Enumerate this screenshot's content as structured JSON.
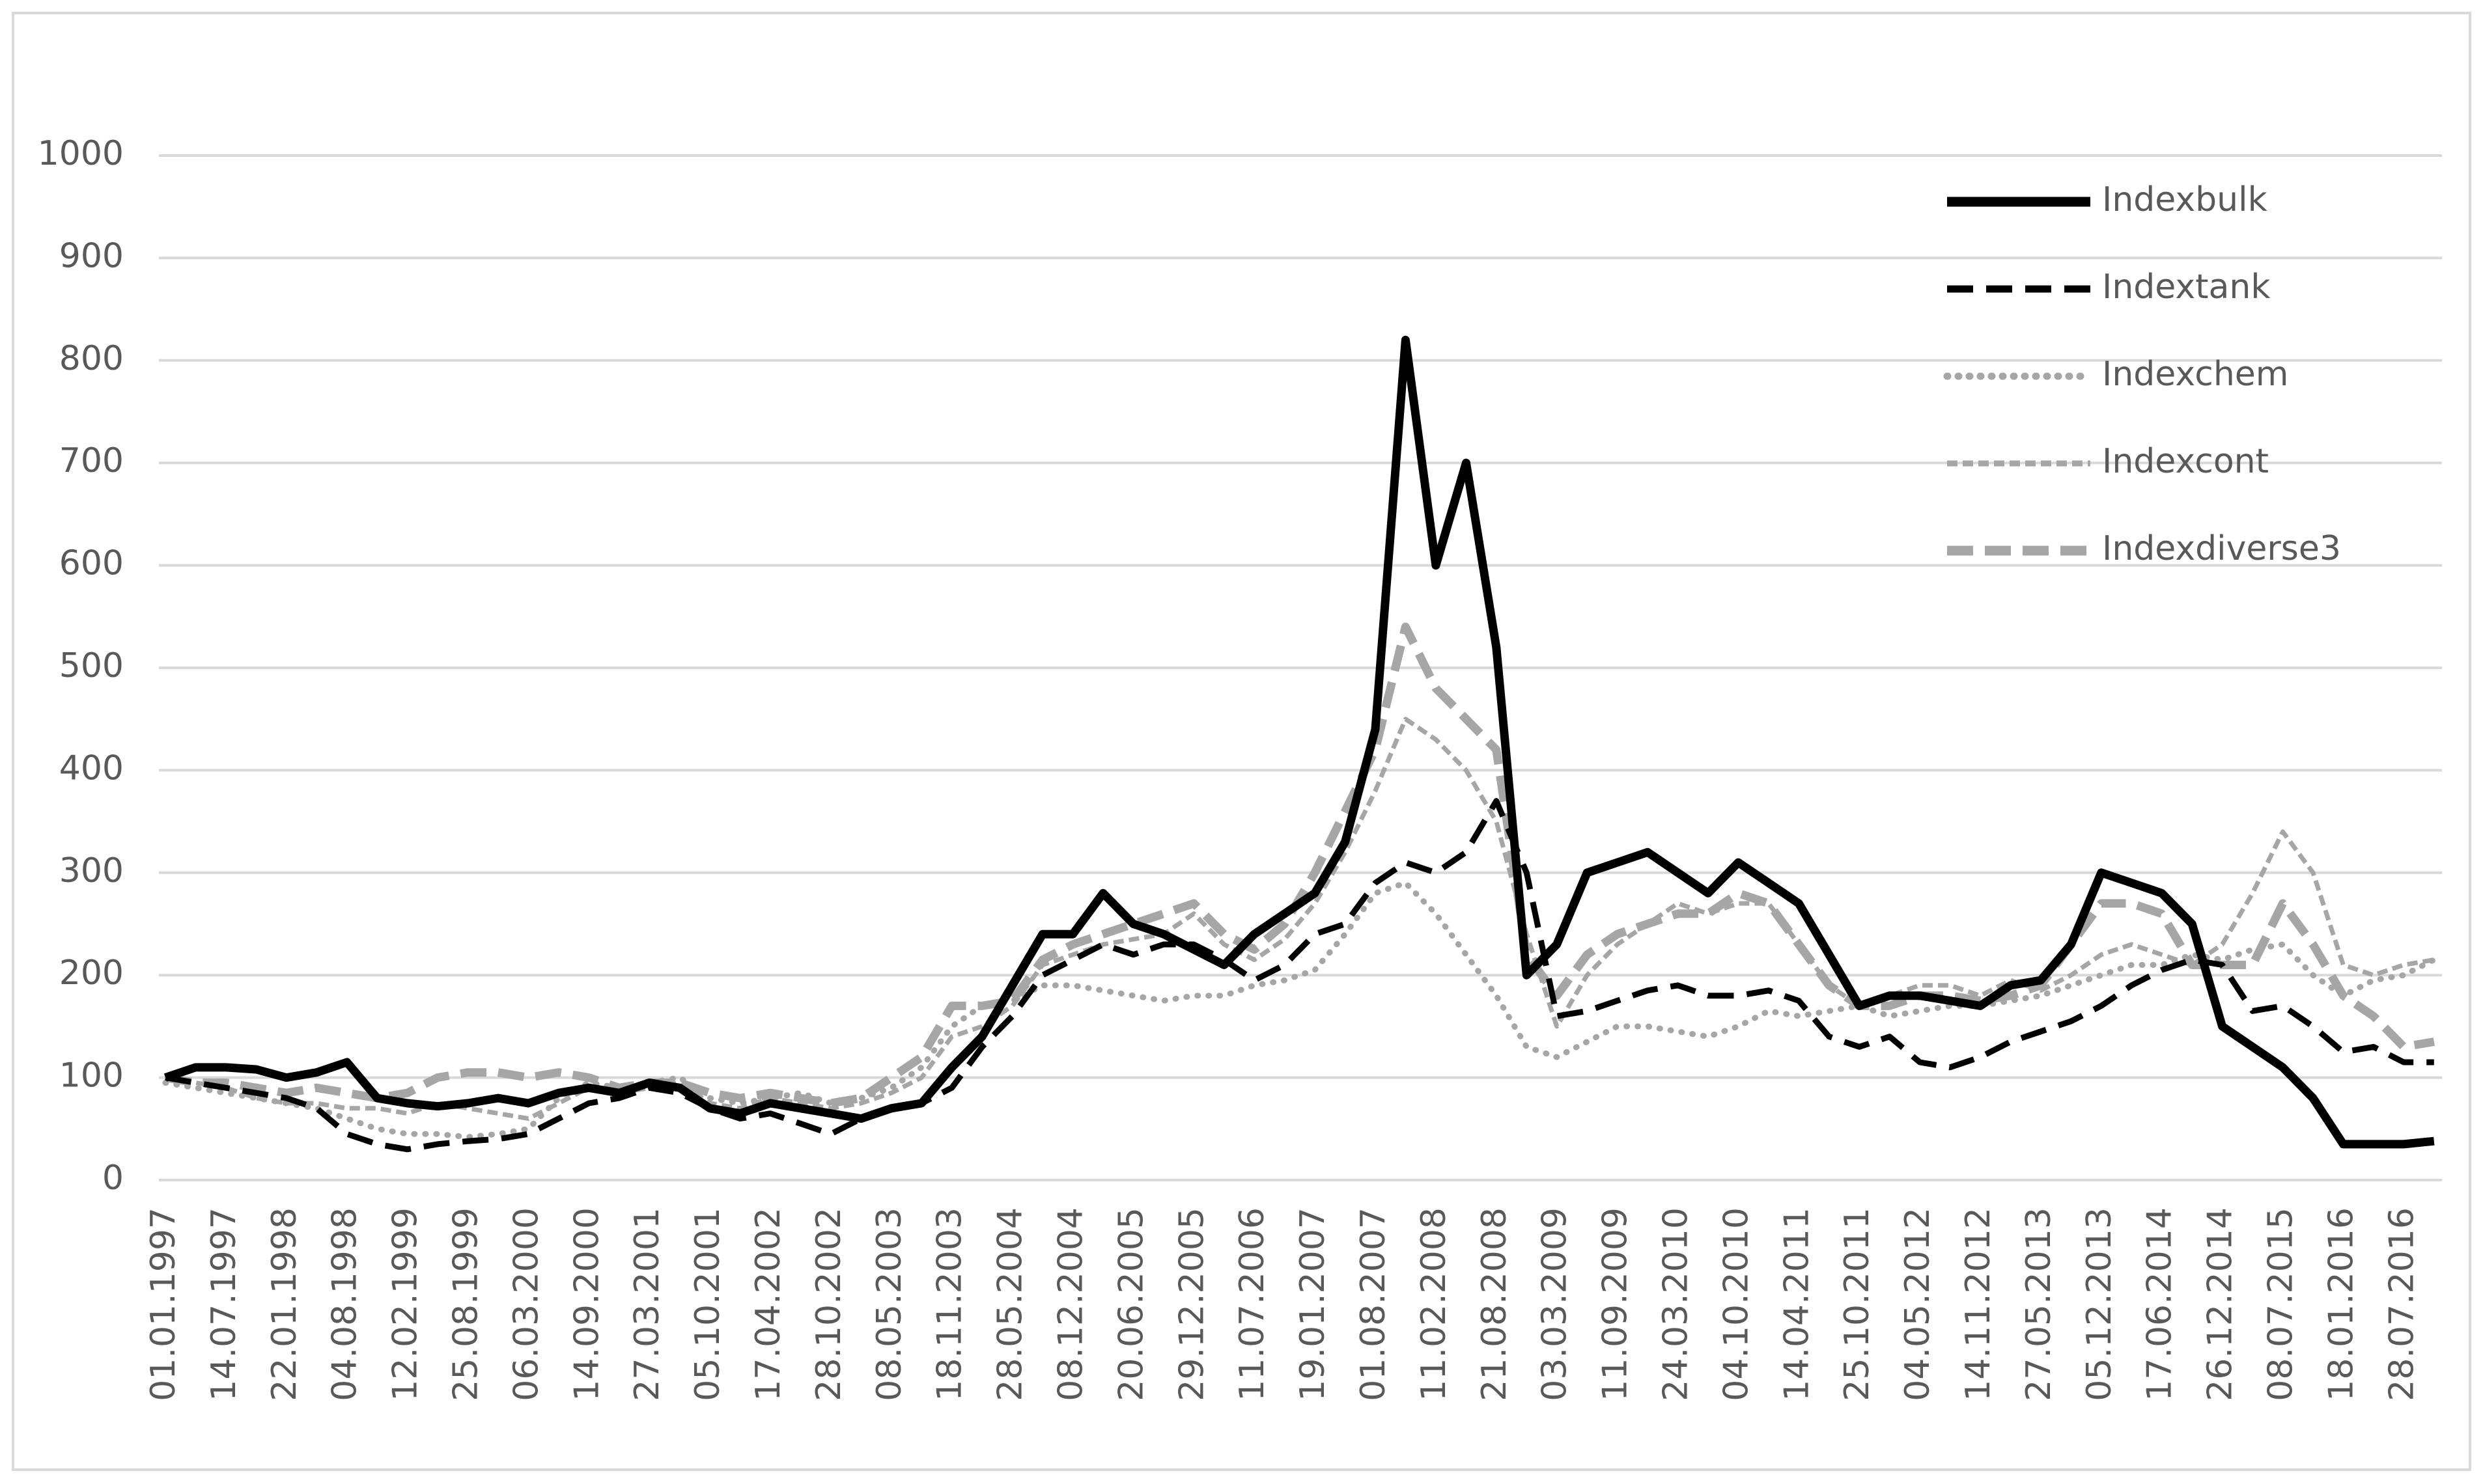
{
  "chart_data": {
    "type": "line",
    "categories": [
      "01.01.1997",
      null,
      "14.07.1997",
      null,
      "22.01.1998",
      null,
      "04.08.1998",
      null,
      "12.02.1999",
      null,
      "25.08.1999",
      null,
      "06.03.2000",
      null,
      "14.09.2000",
      null,
      "27.03.2001",
      null,
      "05.10.2001",
      null,
      "17.04.2002",
      null,
      "28.10.2002",
      null,
      "08.05.2003",
      null,
      "18.11.2003",
      null,
      "28.05.2004",
      null,
      "08.12.2004",
      null,
      "20.06.2005",
      null,
      "29.12.2005",
      null,
      "11.07.2006",
      null,
      "19.01.2007",
      null,
      "01.08.2007",
      null,
      "11.02.2008",
      null,
      "21.08.2008",
      null,
      "03.03.2009",
      null,
      "11.09.2009",
      null,
      "24.03.2010",
      null,
      "04.10.2010",
      null,
      "14.04.2011",
      null,
      "25.10.2011",
      null,
      "04.05.2012",
      null,
      "14.11.2012",
      null,
      "27.05.2013",
      null,
      "05.12.2013",
      null,
      "17.06.2014",
      null,
      "26.12.2014",
      null,
      "08.07.2015",
      null,
      "18.01.2016",
      null,
      "28.07.2016",
      null
    ],
    "series": [
      {
        "name": "Indexbulk",
        "color": "#000000",
        "values": [
          100,
          110,
          110,
          108,
          100,
          105,
          115,
          80,
          75,
          72,
          75,
          80,
          75,
          85,
          90,
          85,
          95,
          90,
          70,
          65,
          75,
          70,
          65,
          60,
          70,
          75,
          110,
          140,
          190,
          240,
          240,
          280,
          250,
          240,
          225,
          210,
          240,
          260,
          280,
          330,
          440,
          820,
          600,
          700,
          520,
          200,
          230,
          300,
          310,
          320,
          300,
          280,
          310,
          290,
          270,
          220,
          170,
          180,
          180,
          175,
          170,
          190,
          195,
          230,
          300,
          290,
          280,
          250,
          150,
          130,
          110,
          80,
          35,
          35,
          35,
          38
        ]
      },
      {
        "name": "Indextank",
        "color": "#000000",
        "values": [
          100,
          95,
          90,
          85,
          80,
          70,
          45,
          35,
          30,
          35,
          38,
          40,
          45,
          60,
          75,
          80,
          90,
          85,
          70,
          60,
          65,
          55,
          45,
          60,
          70,
          75,
          90,
          130,
          160,
          200,
          215,
          230,
          220,
          230,
          230,
          215,
          195,
          210,
          240,
          250,
          290,
          310,
          300,
          320,
          370,
          300,
          160,
          165,
          175,
          185,
          190,
          180,
          180,
          185,
          175,
          140,
          130,
          140,
          115,
          110,
          120,
          135,
          145,
          155,
          170,
          190,
          205,
          215,
          210,
          165,
          170,
          150,
          125,
          130,
          115,
          115
        ]
      },
      {
        "name": "Indexchem",
        "color": "#a6a6a6",
        "values": [
          95,
          90,
          85,
          80,
          75,
          70,
          60,
          50,
          45,
          45,
          42,
          45,
          50,
          80,
          95,
          90,
          95,
          100,
          80,
          75,
          80,
          85,
          75,
          80,
          90,
          110,
          150,
          170,
          175,
          190,
          190,
          185,
          180,
          175,
          180,
          180,
          190,
          195,
          205,
          240,
          280,
          290,
          260,
          220,
          180,
          130,
          120,
          135,
          150,
          150,
          145,
          140,
          150,
          165,
          160,
          165,
          170,
          160,
          165,
          170,
          170,
          175,
          180,
          190,
          200,
          210,
          210,
          220,
          215,
          225,
          230,
          200,
          180,
          195,
          200,
          215
        ]
      },
      {
        "name": "Indexcont",
        "color": "#a6a6a6",
        "values": [
          100,
          95,
          90,
          80,
          75,
          75,
          70,
          70,
          65,
          75,
          70,
          65,
          60,
          75,
          90,
          85,
          90,
          95,
          75,
          70,
          80,
          75,
          70,
          75,
          85,
          100,
          140,
          150,
          170,
          210,
          220,
          230,
          235,
          240,
          260,
          230,
          215,
          235,
          270,
          320,
          380,
          450,
          430,
          400,
          350,
          240,
          150,
          200,
          230,
          250,
          270,
          260,
          270,
          270,
          230,
          190,
          170,
          180,
          190,
          190,
          180,
          195,
          185,
          200,
          220,
          230,
          220,
          210,
          230,
          280,
          340,
          300,
          210,
          200,
          210,
          215
        ]
      },
      {
        "name": "Indexdiverse3",
        "color": "#a6a6a6",
        "values": [
          100,
          95,
          95,
          90,
          85,
          90,
          85,
          80,
          85,
          100,
          105,
          105,
          100,
          105,
          100,
          90,
          95,
          95,
          85,
          80,
          85,
          80,
          75,
          80,
          100,
          120,
          170,
          170,
          175,
          215,
          230,
          240,
          250,
          260,
          270,
          240,
          225,
          250,
          300,
          360,
          420,
          540,
          480,
          450,
          420,
          220,
          180,
          220,
          240,
          250,
          260,
          260,
          280,
          270,
          230,
          190,
          170,
          170,
          180,
          180,
          175,
          180,
          190,
          230,
          270,
          270,
          260,
          210,
          210,
          210,
          270,
          230,
          180,
          160,
          130,
          135
        ]
      }
    ],
    "ylim": [
      0,
      1000
    ],
    "yticks": [
      0,
      100,
      200,
      300,
      400,
      500,
      600,
      700,
      800,
      900,
      1000
    ],
    "grid": true,
    "legend": "top-right"
  }
}
